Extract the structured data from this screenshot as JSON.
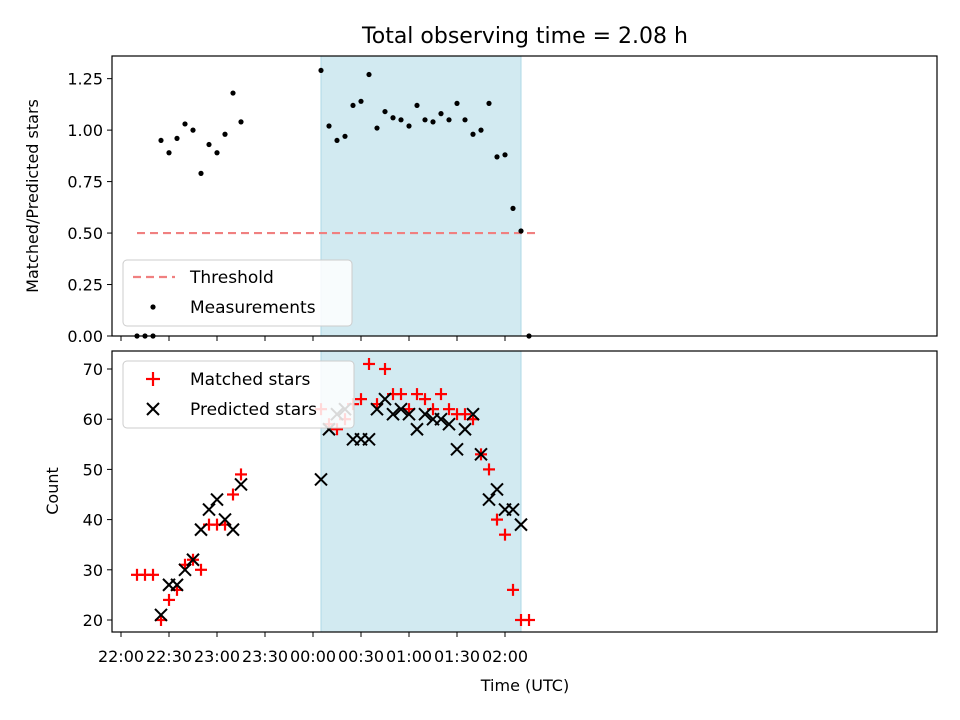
{
  "chart_data": [
    {
      "type": "scatter",
      "title": "Total observing time = 2.08 h",
      "ylabel": "Matched/Predicted stars",
      "xlabel": "",
      "ylim": [
        0,
        1.36
      ],
      "yticks": [
        "0.00",
        "0.25",
        "0.50",
        "0.75",
        "1.00",
        "1.25"
      ],
      "x_unit": "minutes from 22:00 UTC",
      "shaded_region": {
        "x_start": 125,
        "x_end": 250,
        "color": "#add8e6"
      },
      "threshold": {
        "name": "Threshold",
        "value": 0.5,
        "x_start": 10,
        "x_end": 260,
        "color": "#f08080"
      },
      "series": [
        {
          "name": "Measurements",
          "color": "#000000",
          "x": [
            10,
            15,
            20,
            25,
            30,
            35,
            40,
            45,
            50,
            55,
            60,
            65,
            70,
            75,
            125,
            130,
            135,
            140,
            145,
            150,
            155,
            160,
            165,
            170,
            175,
            180,
            185,
            190,
            195,
            200,
            205,
            210,
            215,
            220,
            225,
            230,
            235,
            240,
            245,
            250,
            255
          ],
          "y": [
            0.0,
            0.0,
            0.0,
            0.95,
            0.89,
            0.96,
            1.03,
            1.0,
            0.79,
            0.93,
            0.89,
            0.98,
            1.18,
            1.04,
            1.29,
            1.02,
            0.95,
            0.97,
            1.12,
            1.14,
            1.27,
            1.01,
            1.09,
            1.06,
            1.05,
            1.02,
            1.12,
            1.05,
            1.04,
            1.08,
            1.05,
            1.13,
            1.05,
            0.98,
            1.0,
            1.13,
            0.87,
            0.88,
            0.62,
            0.51,
            0.0
          ]
        }
      ]
    },
    {
      "type": "scatter",
      "title": "",
      "ylabel": "Count",
      "xlabel": "Time (UTC)",
      "ylim": [
        18,
        73
      ],
      "yticks": [
        "20",
        "30",
        "40",
        "50",
        "60",
        "70"
      ],
      "xticks": [
        "22:00",
        "22:30",
        "23:00",
        "23:30",
        "00:00",
        "00:30",
        "01:00",
        "01:30",
        "02:00"
      ],
      "x_unit": "minutes from 22:00 UTC",
      "shaded_region": {
        "x_start": 125,
        "x_end": 250,
        "color": "#add8e6"
      },
      "series": [
        {
          "name": "Matched stars",
          "marker": "+",
          "color": "#ff0000",
          "x": [
            10,
            15,
            20,
            25,
            30,
            35,
            40,
            45,
            50,
            55,
            60,
            65,
            70,
            75,
            125,
            130,
            135,
            140,
            145,
            150,
            155,
            160,
            165,
            170,
            175,
            180,
            185,
            190,
            195,
            200,
            205,
            210,
            215,
            220,
            225,
            230,
            235,
            240,
            245,
            250,
            255
          ],
          "y": [
            29,
            29,
            29,
            20,
            24,
            26,
            31,
            32,
            30,
            39,
            39,
            39,
            45,
            49,
            62,
            59,
            58,
            60,
            63,
            64,
            71,
            63,
            70,
            65,
            65,
            62,
            65,
            64,
            62,
            65,
            62,
            61,
            61,
            60,
            53,
            50,
            40,
            37,
            26,
            20,
            20
          ]
        },
        {
          "name": "Predicted stars",
          "marker": "x",
          "color": "#000000",
          "x": [
            25,
            30,
            35,
            40,
            45,
            50,
            55,
            60,
            65,
            70,
            75,
            125,
            130,
            135,
            140,
            145,
            150,
            155,
            160,
            165,
            170,
            175,
            180,
            185,
            190,
            195,
            200,
            205,
            210,
            215,
            220,
            225,
            230,
            235,
            240,
            245,
            250
          ],
          "y": [
            21,
            27,
            27,
            30,
            32,
            38,
            42,
            44,
            40,
            38,
            47,
            48,
            58,
            61,
            62,
            56,
            56,
            56,
            62,
            64,
            61,
            62,
            61,
            58,
            61,
            60,
            60,
            59,
            54,
            58,
            61,
            53,
            44,
            46,
            42,
            42,
            39
          ]
        }
      ]
    }
  ]
}
